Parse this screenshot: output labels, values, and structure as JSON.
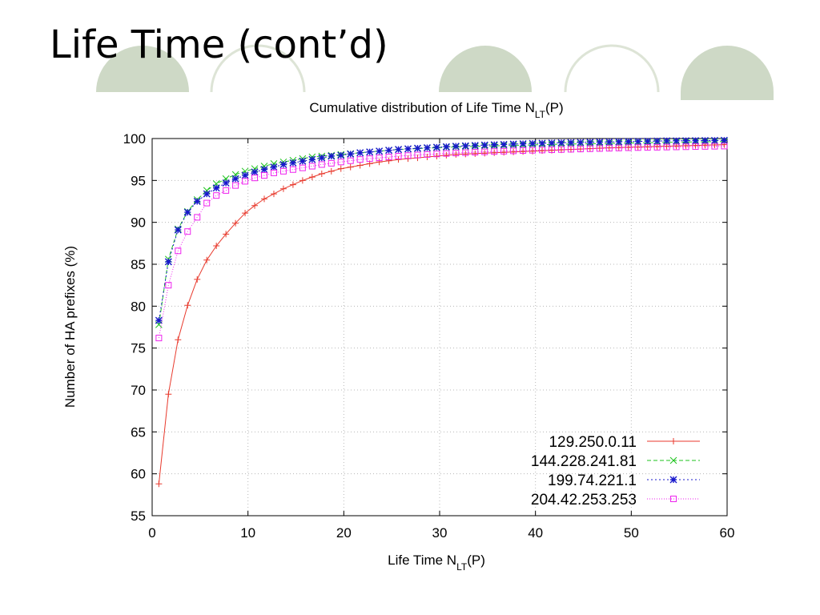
{
  "slide": {
    "title": "Life Time (cont’d)",
    "decoration": "circles",
    "decoration_colors": {
      "fill": "#ced9c6",
      "ring": "#dde4d6"
    }
  },
  "chart_data": {
    "type": "line",
    "title": {
      "main": "Cumulative distribution of Life Time N",
      "sub": "LT",
      "tail": "(P)"
    },
    "xlabel": {
      "main": "Life Time N",
      "sub": "LT",
      "tail": "(P)"
    },
    "ylabel": "Number of HA prefixes (%)",
    "xlim": [
      0,
      60
    ],
    "ylim": [
      55,
      100
    ],
    "xticks": [
      0,
      10,
      20,
      30,
      40,
      50,
      60
    ],
    "yticks": [
      55,
      60,
      65,
      70,
      75,
      80,
      85,
      90,
      95,
      100
    ],
    "grid": true,
    "legend_position": "bottom-right",
    "x": [
      0.7,
      1.7,
      2.7,
      3.7,
      4.7,
      5.7,
      6.7,
      7.7,
      8.7,
      9.7,
      10.7,
      11.7,
      12.7,
      13.7,
      14.7,
      15.7,
      16.7,
      17.7,
      18.7,
      19.7,
      20.7,
      21.7,
      22.7,
      23.7,
      24.7,
      25.7,
      26.7,
      27.7,
      28.7,
      29.7,
      30.7,
      31.7,
      32.7,
      33.7,
      34.7,
      35.7,
      36.7,
      37.7,
      38.7,
      39.7,
      40.7,
      41.7,
      42.7,
      43.7,
      44.7,
      45.7,
      46.7,
      47.7,
      48.7,
      49.7,
      50.7,
      51.7,
      52.7,
      53.7,
      54.7,
      55.7,
      56.7,
      57.7,
      58.7,
      59.7
    ],
    "series": [
      {
        "name": "129.250.0.11",
        "color": "#e8392c",
        "marker": "plus",
        "dash": "",
        "values": [
          58.8,
          69.5,
          76.0,
          80.1,
          83.2,
          85.5,
          87.2,
          88.6,
          89.9,
          91.1,
          92.0,
          92.8,
          93.4,
          94.0,
          94.5,
          95.0,
          95.4,
          95.8,
          96.1,
          96.4,
          96.6,
          96.8,
          97.0,
          97.2,
          97.35,
          97.5,
          97.6,
          97.7,
          97.8,
          97.9,
          98.0,
          98.1,
          98.15,
          98.2,
          98.25,
          98.3,
          98.35,
          98.4,
          98.45,
          98.5,
          98.55,
          98.6,
          98.65,
          98.7,
          98.75,
          98.8,
          98.85,
          98.9,
          98.93,
          98.96,
          99.0,
          99.03,
          99.06,
          99.09,
          99.12,
          99.15,
          99.18,
          99.21,
          99.24,
          99.27
        ]
      },
      {
        "name": "144.228.241.81",
        "color": "#1ec31e",
        "marker": "cross",
        "dash": "5,3",
        "values": [
          77.8,
          85.6,
          89.2,
          91.3,
          92.7,
          93.8,
          94.6,
          95.2,
          95.7,
          96.1,
          96.4,
          96.7,
          97.0,
          97.2,
          97.4,
          97.6,
          97.8,
          97.9,
          98.0,
          98.1,
          98.2,
          98.3,
          98.4,
          98.5,
          98.6,
          98.7,
          98.75,
          98.8,
          98.85,
          98.9,
          98.95,
          99.0,
          99.03,
          99.06,
          99.09,
          99.12,
          99.15,
          99.18,
          99.21,
          99.24,
          99.27,
          99.3,
          99.32,
          99.34,
          99.36,
          99.38,
          99.4,
          99.42,
          99.44,
          99.46,
          99.48,
          99.5,
          99.52,
          99.54,
          99.56,
          99.58,
          99.6,
          99.62,
          99.64,
          99.66
        ]
      },
      {
        "name": "199.74.221.1",
        "color": "#1818cc",
        "marker": "star",
        "dash": "2,3",
        "values": [
          78.3,
          85.3,
          89.1,
          91.2,
          92.5,
          93.4,
          94.1,
          94.7,
          95.2,
          95.6,
          96.0,
          96.3,
          96.6,
          96.9,
          97.1,
          97.3,
          97.5,
          97.7,
          97.9,
          98.0,
          98.15,
          98.3,
          98.4,
          98.5,
          98.6,
          98.7,
          98.77,
          98.84,
          98.9,
          98.96,
          99.02,
          99.08,
          99.13,
          99.18,
          99.22,
          99.26,
          99.3,
          99.34,
          99.38,
          99.41,
          99.44,
          99.47,
          99.5,
          99.52,
          99.54,
          99.56,
          99.58,
          99.6,
          99.62,
          99.64,
          99.66,
          99.68,
          99.7,
          99.72,
          99.73,
          99.74,
          99.75,
          99.76,
          99.77,
          99.78
        ]
      },
      {
        "name": "204.42.253.253",
        "color": "#ee22ee",
        "marker": "square",
        "dash": "1,2",
        "values": [
          76.2,
          82.5,
          86.6,
          88.9,
          90.6,
          92.3,
          93.2,
          93.8,
          94.4,
          94.9,
          95.3,
          95.6,
          95.9,
          96.1,
          96.3,
          96.5,
          96.7,
          96.9,
          97.05,
          97.2,
          97.35,
          97.5,
          97.6,
          97.7,
          97.8,
          97.9,
          97.97,
          98.04,
          98.1,
          98.16,
          98.22,
          98.27,
          98.32,
          98.37,
          98.41,
          98.45,
          98.49,
          98.53,
          98.57,
          98.6,
          98.63,
          98.66,
          98.69,
          98.72,
          98.75,
          98.78,
          98.81,
          98.84,
          98.87,
          98.9,
          98.92,
          98.94,
          98.96,
          98.98,
          99.0,
          99.02,
          99.04,
          99.06,
          99.08,
          99.1
        ]
      }
    ]
  }
}
